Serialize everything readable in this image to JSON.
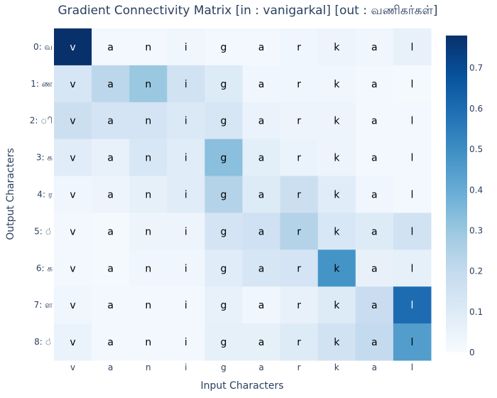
{
  "chart_data": {
    "type": "heatmap",
    "title": "Gradient Connectivity Matrix [in : vanigarkal] [out : வணிகர்கள்]",
    "xlabel": "Input Characters",
    "ylabel": "Output Characters",
    "x_categories": [
      "v",
      "a",
      "n",
      "i",
      "g",
      "a",
      "r",
      "k",
      "a",
      "l"
    ],
    "y_categories": [
      "0: வ",
      "1: ண",
      "2: ி",
      "3: க",
      "4: ர",
      "5: ்",
      "6: க",
      "7: ள",
      "8: ்"
    ],
    "cell_text": [
      [
        "v",
        "a",
        "n",
        "i",
        "g",
        "a",
        "r",
        "k",
        "a",
        "l"
      ],
      [
        "v",
        "a",
        "n",
        "i",
        "g",
        "a",
        "r",
        "k",
        "a",
        "l"
      ],
      [
        "v",
        "a",
        "n",
        "i",
        "g",
        "a",
        "r",
        "k",
        "a",
        "l"
      ],
      [
        "v",
        "a",
        "n",
        "i",
        "g",
        "a",
        "r",
        "k",
        "a",
        "l"
      ],
      [
        "v",
        "a",
        "n",
        "i",
        "g",
        "a",
        "r",
        "k",
        "a",
        "l"
      ],
      [
        "v",
        "a",
        "n",
        "i",
        "g",
        "a",
        "r",
        "k",
        "a",
        "l"
      ],
      [
        "v",
        "a",
        "n",
        "i",
        "g",
        "a",
        "r",
        "k",
        "a",
        "l"
      ],
      [
        "v",
        "a",
        "n",
        "i",
        "g",
        "a",
        "r",
        "k",
        "a",
        "l"
      ],
      [
        "v",
        "a",
        "n",
        "i",
        "g",
        "a",
        "r",
        "k",
        "a",
        "l"
      ]
    ],
    "z": [
      [
        0.78,
        0.02,
        0.02,
        0.03,
        0.02,
        0.02,
        0.03,
        0.04,
        0.03,
        0.06
      ],
      [
        0.13,
        0.22,
        0.3,
        0.15,
        0.1,
        0.03,
        0.03,
        0.03,
        0.02,
        0.01
      ],
      [
        0.17,
        0.14,
        0.14,
        0.11,
        0.13,
        0.05,
        0.04,
        0.04,
        0.02,
        0.02
      ],
      [
        0.09,
        0.06,
        0.12,
        0.09,
        0.33,
        0.08,
        0.05,
        0.04,
        0.02,
        0.02
      ],
      [
        0.03,
        0.04,
        0.07,
        0.09,
        0.24,
        0.1,
        0.17,
        0.09,
        0.03,
        0.02
      ],
      [
        0.02,
        0.01,
        0.04,
        0.04,
        0.14,
        0.16,
        0.24,
        0.12,
        0.1,
        0.15
      ],
      [
        0.02,
        0.01,
        0.03,
        0.03,
        0.09,
        0.13,
        0.14,
        0.48,
        0.06,
        0.07
      ],
      [
        0.03,
        0.02,
        0.02,
        0.02,
        0.06,
        0.03,
        0.06,
        0.1,
        0.18,
        0.6
      ],
      [
        0.05,
        0.02,
        0.02,
        0.02,
        0.07,
        0.07,
        0.1,
        0.15,
        0.2,
        0.45
      ]
    ],
    "zlim": [
      0,
      0.78
    ],
    "colorscale": "Blues",
    "colorbar_ticks": [
      0,
      0.1,
      0.2,
      0.3,
      0.4,
      0.5,
      0.6,
      0.7
    ],
    "colorbar_tick_labels": [
      "0",
      "0.1",
      "0.2",
      "0.3",
      "0.4",
      "0.5",
      "0.6",
      "0.7"
    ]
  }
}
